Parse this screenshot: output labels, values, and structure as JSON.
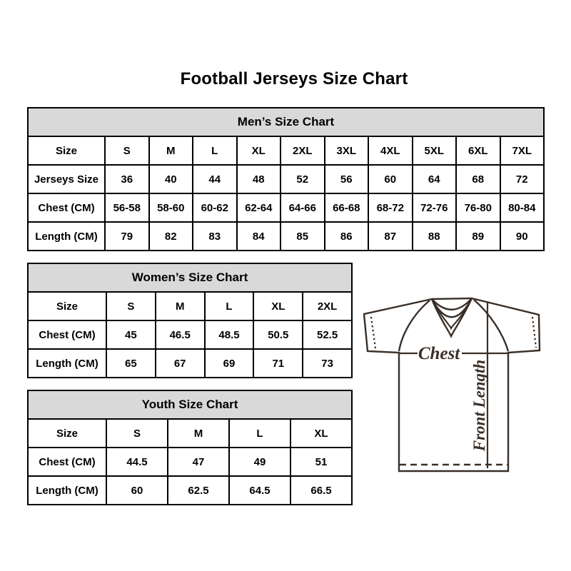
{
  "title": "Football Jerseys Size Chart",
  "tables": {
    "men": {
      "header": "Men’s Size Chart",
      "rows": [
        [
          "Size",
          "S",
          "M",
          "L",
          "XL",
          "2XL",
          "3XL",
          "4XL",
          "5XL",
          "6XL",
          "7XL"
        ],
        [
          "Jerseys Size",
          "36",
          "40",
          "44",
          "48",
          "52",
          "56",
          "60",
          "64",
          "68",
          "72"
        ],
        [
          "Chest (CM)",
          "56-58",
          "58-60",
          "60-62",
          "62-64",
          "64-66",
          "66-68",
          "68-72",
          "72-76",
          "76-80",
          "80-84"
        ],
        [
          "Length (CM)",
          "79",
          "82",
          "83",
          "84",
          "85",
          "86",
          "87",
          "88",
          "89",
          "90"
        ]
      ]
    },
    "women": {
      "header": "Women’s Size Chart",
      "rows": [
        [
          "Size",
          "S",
          "M",
          "L",
          "XL",
          "2XL"
        ],
        [
          "Chest (CM)",
          "45",
          "46.5",
          "48.5",
          "50.5",
          "52.5"
        ],
        [
          "Length (CM)",
          "65",
          "67",
          "69",
          "71",
          "73"
        ]
      ]
    },
    "youth": {
      "header": "Youth Size Chart",
      "rows": [
        [
          "Size",
          "S",
          "M",
          "L",
          "XL"
        ],
        [
          "Chest (CM)",
          "44.5",
          "47",
          "49",
          "51"
        ],
        [
          "Length (CM)",
          "60",
          "62.5",
          "64.5",
          "66.5"
        ]
      ]
    }
  },
  "diagram": {
    "chest_label": "Chest",
    "front_length_label": "Front Length"
  },
  "colors": {
    "table_header_bg": "#d9d9d9",
    "table_border": "#000000",
    "text": "#000000",
    "diagram_line": "#3a2f27"
  }
}
